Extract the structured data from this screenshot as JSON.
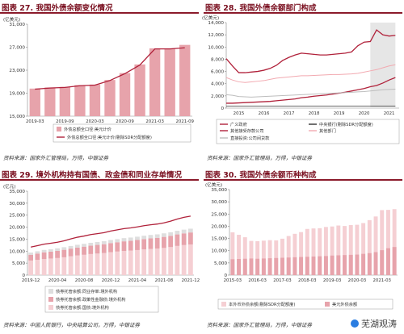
{
  "colors": {
    "dark_red": "#b0213a",
    "pink": "#e7a3ab",
    "light_pink": "#f5cfd3",
    "grey_line": "#bdbdbd",
    "pink_line": "#f2a9b0",
    "shade": "#e6e6e6"
  },
  "panels": [
    {
      "title": "图表 27. 我国外债余额变化情况",
      "source": "资料来源：国家外汇管理局，万得，中银证券"
    },
    {
      "title": "图表 28. 我国外债余额部门构成",
      "source": "资料来源：国家外汇管理局，万得，中银证券"
    },
    {
      "title": "图表 29. 境外机构持有国债、政金债和同业存单情况",
      "source": "资料来源：中国人民银行，中央结算公司，万得，中银证券"
    },
    {
      "title": "图表 30. 我国外债余额币种构成",
      "source": "资料来源：国家外汇管理局，万得，中银证券"
    }
  ],
  "watermark": "芜湖观涛",
  "chart_data": [
    {
      "type": "bar",
      "unit_label": "(亿美元)",
      "yticks": [
        "15,000",
        "19,000",
        "23,000",
        "27,000",
        "31,000"
      ],
      "ylim": [
        15000,
        31000
      ],
      "xtick_labels": [
        "2019-03",
        "2019-09",
        "2020-03",
        "2020-09",
        "2021-03",
        "2021-09"
      ],
      "categories": [
        "2019-03",
        "2019-06",
        "2019-09",
        "2019-12",
        "2020-03",
        "2020-06",
        "2020-09",
        "2020-12",
        "2021-03",
        "2021-06",
        "2021-09"
      ],
      "series": [
        {
          "name": "外债总额全口径:美元计价",
          "kind": "bar",
          "values": [
            19800,
            20000,
            20100,
            20400,
            20500,
            21300,
            22500,
            24000,
            26800,
            26800,
            27400
          ]
        },
        {
          "name": "外债总额全口径:美元计价(剔除SDR分配额度)",
          "kind": "line",
          "values": [
            19700,
            19900,
            20000,
            20300,
            20400,
            21200,
            22400,
            23900,
            26700,
            26700,
            26900
          ]
        }
      ]
    },
    {
      "type": "line",
      "unit_label": "(亿美元)",
      "yticks": [
        "0",
        "2,000",
        "4,000",
        "6,000",
        "8,000",
        "10,000",
        "12,000",
        "14,000"
      ],
      "ylim": [
        0,
        14000
      ],
      "xtick_labels": [
        "2015",
        "2016",
        "2017",
        "2018",
        "2019",
        "2020",
        "2021"
      ],
      "x": [
        2015.0,
        2015.25,
        2015.5,
        2015.75,
        2016.0,
        2016.25,
        2016.5,
        2016.75,
        2017.0,
        2017.25,
        2017.5,
        2017.75,
        2018.0,
        2018.25,
        2018.5,
        2018.75,
        2019.0,
        2019.25,
        2019.5,
        2019.75,
        2020.0,
        2020.25,
        2020.5,
        2020.75,
        2021.0,
        2021.25,
        2021.5,
        2021.75
      ],
      "series": [
        {
          "name": "广义政府",
          "values": [
            800,
            800,
            850,
            900,
            950,
            1000,
            1050,
            1100,
            1200,
            1300,
            1400,
            1500,
            1700,
            1800,
            1950,
            2050,
            2150,
            2300,
            2450,
            2600,
            2800,
            3000,
            3200,
            3500,
            3700,
            4100,
            4600,
            5000
          ]
        },
        {
          "name": "中央银行(剔除SDR分配额度)",
          "values": [
            350,
            350,
            350,
            350,
            350,
            350,
            350,
            350,
            350,
            350,
            350,
            350,
            350,
            350,
            350,
            350,
            350,
            350,
            350,
            350,
            350,
            350,
            350,
            350,
            350,
            350,
            350,
            350
          ]
        },
        {
          "name": "其他接受存款公司",
          "values": [
            8100,
            6900,
            5800,
            5800,
            5900,
            6000,
            6200,
            6500,
            7000,
            7800,
            8300,
            8700,
            9000,
            8900,
            8800,
            8700,
            8700,
            8800,
            8900,
            9000,
            9200,
            10200,
            10800,
            10900,
            12800,
            12000,
            11800,
            11900
          ]
        },
        {
          "name": "其他部门",
          "values": [
            5000,
            4600,
            4300,
            4200,
            4300,
            4400,
            4500,
            4700,
            4900,
            5000,
            5100,
            5200,
            5300,
            5300,
            5350,
            5400,
            5450,
            5500,
            5500,
            5550,
            5600,
            5700,
            5900,
            6100,
            6300,
            6600,
            6900,
            7100
          ]
        },
        {
          "name": "直接投资:公司间贷款",
          "values": [
            2200,
            2100,
            1900,
            1850,
            1800,
            1850,
            1900,
            1950,
            2000,
            2050,
            2100,
            2150,
            2200,
            2250,
            2300,
            2350,
            2400,
            2450,
            2500,
            2550,
            2600,
            2650,
            2700,
            2800,
            2900,
            3000,
            3050,
            3100
          ]
        }
      ],
      "shaded_range": [
        2020.75,
        2021.75
      ]
    },
    {
      "type": "bar",
      "unit_label": "(亿元)",
      "yticks": [
        "0",
        "5,000",
        "10,000",
        "15,000",
        "20,000",
        "25,000",
        "30,000",
        "35,000"
      ],
      "ylim": [
        0,
        35000
      ],
      "xtick_labels": [
        "2019-12",
        "2020-04",
        "2020-08",
        "2020-12",
        "2021-04",
        "2021-08",
        "2021-12"
      ],
      "categories": [
        "2019-12",
        "2020-01",
        "2020-02",
        "2020-03",
        "2020-04",
        "2020-05",
        "2020-06",
        "2020-07",
        "2020-08",
        "2020-09",
        "2020-10",
        "2020-11",
        "2020-12",
        "2021-01",
        "2021-02",
        "2021-03",
        "2021-04",
        "2021-05",
        "2021-06",
        "2021-07",
        "2021-08",
        "2021-09",
        "2021-10",
        "2021-11",
        "2021-12"
      ],
      "series": [
        {
          "name": "债券托管余额:同业存单:境外机构",
          "kind": "bar_top",
          "values": [
            1800,
            1900,
            2000,
            2000,
            2100,
            2150,
            2200,
            2300,
            2350,
            2400,
            2450,
            2500,
            2550,
            2600,
            2650,
            2700,
            2750,
            2800,
            2850,
            2900,
            2950,
            3000,
            3050,
            3100,
            3150
          ]
        },
        {
          "name": "债券托管余额:政策性金融债:境外机构",
          "kind": "bar_mid",
          "values": [
            600,
            650,
            700,
            720,
            750,
            780,
            800,
            820,
            850,
            870,
            900,
            920,
            950,
            970,
            1000,
            1020,
            1050,
            1080,
            1100,
            1120,
            1150,
            1170,
            1200,
            1220,
            1250
          ]
        },
        {
          "name": "债券托管余额:国债:境外机构",
          "kind": "line",
          "values": [
            11700,
            12300,
            12900,
            13300,
            13700,
            14300,
            15100,
            15800,
            16300,
            16900,
            17300,
            17700,
            18400,
            18900,
            19400,
            19700,
            20100,
            20600,
            21000,
            21300,
            21800,
            22500,
            23400,
            24100,
            24600
          ]
        }
      ]
    },
    {
      "type": "bar",
      "unit_label": "(亿美元)",
      "yticks": [
        "0",
        "5,000",
        "10,000",
        "15,000",
        "20,000",
        "25,000",
        "30,000",
        "35,000"
      ],
      "ylim": [
        0,
        35000
      ],
      "xtick_labels": [
        "2015-03",
        "2016-03",
        "2017-03",
        "2018-03",
        "2019-03",
        "2020-03",
        "2021-03"
      ],
      "categories": [
        "2015-03",
        "2015-06",
        "2015-09",
        "2015-12",
        "2016-03",
        "2016-06",
        "2016-09",
        "2016-12",
        "2017-03",
        "2017-06",
        "2017-09",
        "2017-12",
        "2018-03",
        "2018-06",
        "2018-09",
        "2018-12",
        "2019-03",
        "2019-06",
        "2019-09",
        "2019-12",
        "2020-03",
        "2020-06",
        "2020-09",
        "2020-12",
        "2021-03",
        "2021-06",
        "2021-09"
      ],
      "series": [
        {
          "name": "本外币外债余额(剔除SDR分配额度)",
          "values": [
            17500,
            16500,
            15500,
            14000,
            13900,
            14100,
            14300,
            14200,
            14900,
            16000,
            16900,
            17600,
            18900,
            19100,
            19200,
            19700,
            19900,
            20300,
            20100,
            20500,
            20600,
            21300,
            22500,
            24000,
            26600,
            26700,
            27000
          ]
        },
        {
          "name": "美元外债余额",
          "values": [
            6500,
            6600,
            6700,
            6800,
            6700,
            6800,
            6900,
            7000,
            7100,
            7200,
            7300,
            7400,
            7500,
            7600,
            7700,
            7800,
            8000,
            8100,
            8200,
            8300,
            8400,
            8700,
            9000,
            9400,
            10200,
            11000,
            11500
          ]
        }
      ]
    }
  ]
}
